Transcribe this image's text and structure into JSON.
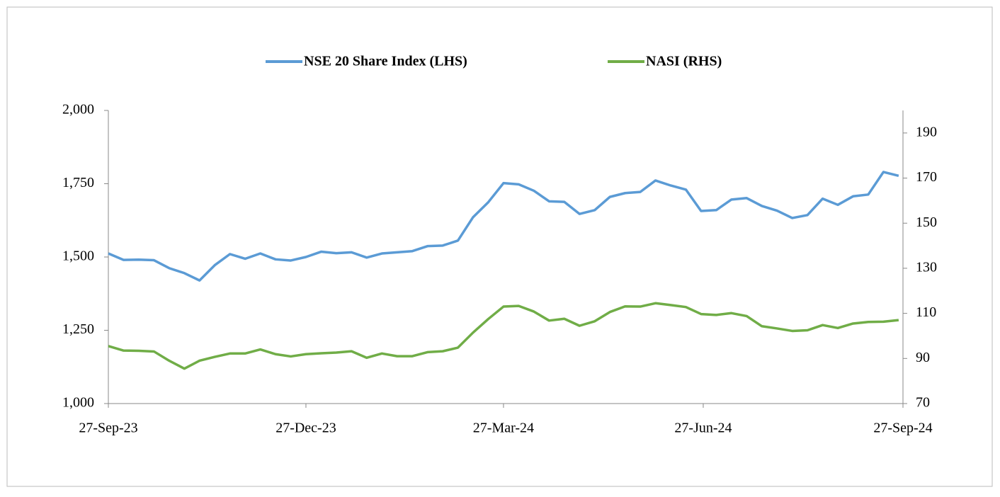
{
  "chart_data": {
    "type": "line",
    "x": [
      "2023-09-27",
      "2023-10-04",
      "2023-10-11",
      "2023-10-18",
      "2023-10-25",
      "2023-11-01",
      "2023-11-08",
      "2023-11-15",
      "2023-11-22",
      "2023-11-29",
      "2023-12-06",
      "2023-12-13",
      "2023-12-20",
      "2023-12-27",
      "2024-01-03",
      "2024-01-10",
      "2024-01-17",
      "2024-01-24",
      "2024-01-31",
      "2024-02-07",
      "2024-02-14",
      "2024-02-21",
      "2024-02-28",
      "2024-03-06",
      "2024-03-13",
      "2024-03-20",
      "2024-03-27",
      "2024-04-03",
      "2024-04-10",
      "2024-04-17",
      "2024-04-24",
      "2024-05-01",
      "2024-05-08",
      "2024-05-15",
      "2024-05-22",
      "2024-05-29",
      "2024-06-05",
      "2024-06-12",
      "2024-06-19",
      "2024-06-26",
      "2024-07-03",
      "2024-07-10",
      "2024-07-17",
      "2024-07-24",
      "2024-07-31",
      "2024-08-07",
      "2024-08-14",
      "2024-08-21",
      "2024-08-28",
      "2024-09-04",
      "2024-09-11",
      "2024-09-18",
      "2024-09-25"
    ],
    "series": [
      {
        "name": "NSE 20 Share Index (LHS)",
        "color": "#5b9bd5",
        "values": [
          1512,
          1490,
          1491,
          1489,
          1462,
          1445,
          1420,
          1472,
          1510,
          1494,
          1512,
          1492,
          1488,
          1500,
          1518,
          1513,
          1516,
          1498,
          1512,
          1516,
          1520,
          1537,
          1539,
          1556,
          1636,
          1687,
          1752,
          1748,
          1726,
          1690,
          1688,
          1647,
          1660,
          1705,
          1718,
          1722,
          1761,
          1744,
          1730,
          1657,
          1660,
          1696,
          1701,
          1674,
          1658,
          1633,
          1643,
          1699,
          1678,
          1707,
          1713,
          1790,
          1777
        ]
      },
      {
        "name": "NASI (RHS)",
        "color": "#70ad47",
        "axis": "y2",
        "values": [
          95.5,
          93.5,
          93.4,
          93.1,
          89,
          85.5,
          89,
          90.7,
          92.2,
          92.2,
          94,
          91.9,
          90.9,
          91.9,
          92.3,
          92.6,
          93.2,
          90.3,
          92.2,
          91,
          91,
          92.8,
          93.2,
          94.8,
          101.5,
          107.5,
          113,
          113.3,
          110.8,
          106.8,
          107.6,
          104.5,
          106.5,
          110.6,
          113.1,
          113,
          114.5,
          113.7,
          112.8,
          109.7,
          109.3,
          110.1,
          108.8,
          104.3,
          103.3,
          102.2,
          102.5,
          104.8,
          103.5,
          105.5,
          106.2,
          106.3,
          107
        ]
      }
    ],
    "xlim": [
      "2023-09-27",
      "2024-09-27"
    ],
    "xticks": [
      {
        "value": "2023-09-27",
        "label": "27-Sep-23"
      },
      {
        "value": "2023-12-27",
        "label": "27-Dec-23"
      },
      {
        "value": "2024-03-27",
        "label": "27-Mar-24"
      },
      {
        "value": "2024-06-27",
        "label": "27-Jun-24"
      },
      {
        "value": "2024-09-27",
        "label": "27-Sep-24"
      }
    ],
    "ylim": [
      1000,
      2000
    ],
    "yticks": [
      {
        "value": 1000,
        "label": "1,000"
      },
      {
        "value": 1250,
        "label": "1,250"
      },
      {
        "value": 1500,
        "label": "1,500"
      },
      {
        "value": 1750,
        "label": "1,750"
      },
      {
        "value": 2000,
        "label": "2,000"
      }
    ],
    "y2lim": [
      70,
      200
    ],
    "y2ticks": [
      70,
      90,
      110,
      130,
      150,
      170,
      190
    ],
    "legend": "top"
  }
}
